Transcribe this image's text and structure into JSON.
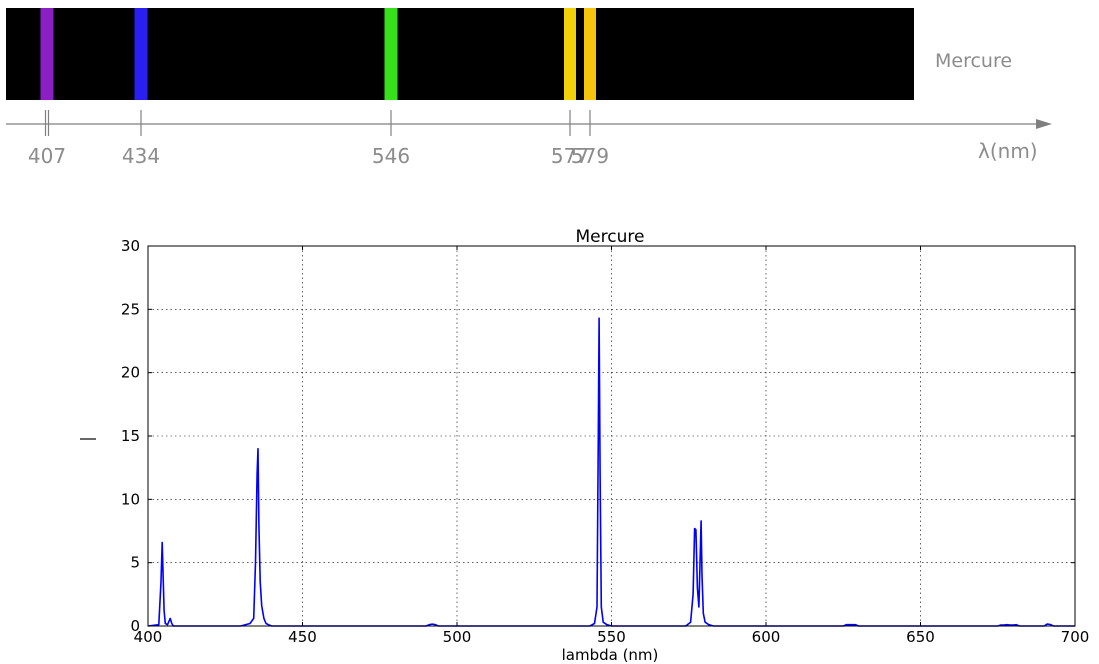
{
  "chart_data": [
    {
      "type": "bar",
      "label": "Mercure",
      "axis_label": "λ(nm)",
      "lines": [
        {
          "wavelength": 407,
          "color": "#8a1fc4"
        },
        {
          "wavelength": 434,
          "color": "#2a1ff2"
        },
        {
          "wavelength": 546,
          "color": "#36e11c"
        },
        {
          "wavelength": 577,
          "color": "#f1d20a"
        },
        {
          "wavelength": 579,
          "color": "#f7c40d"
        }
      ],
      "tick_labels": [
        "407",
        "434",
        "546",
        "577",
        "579"
      ]
    },
    {
      "type": "line",
      "title": "Mercure",
      "xlabel": "lambda (nm)",
      "ylabel": "",
      "xlim": [
        400,
        700
      ],
      "ylim": [
        0,
        30
      ],
      "xticks": [
        400,
        450,
        500,
        550,
        600,
        650,
        700
      ],
      "yticks": [
        0,
        5,
        10,
        15,
        20,
        25,
        30
      ],
      "grid": true,
      "series_color": "#0000ff",
      "series": [
        {
          "x": [
            400,
            403.5,
            404.2,
            404.6,
            404.9,
            405.2,
            405.6,
            406.3,
            407.2,
            407.7,
            408.2,
            409,
            430,
            433,
            434.2,
            434.8,
            435.3,
            435.6,
            435.9,
            436.3,
            436.8,
            437.5,
            438.2,
            439,
            440,
            490,
            491,
            492,
            493,
            494,
            543,
            544.5,
            545.3,
            545.7,
            546.0,
            546.3,
            546.7,
            547.3,
            548.5,
            550,
            574,
            575.6,
            576.4,
            576.9,
            577.3,
            577.8,
            578.3,
            578.7,
            579.0,
            579.3,
            579.7,
            580.3,
            581.5,
            583,
            625,
            626,
            627,
            628,
            629,
            630,
            675,
            676,
            677,
            678,
            679,
            680,
            681,
            682,
            690,
            691,
            692,
            693,
            700
          ],
          "y": [
            0,
            0.1,
            3.5,
            6.6,
            4.0,
            1.2,
            0.2,
            0.1,
            0.6,
            0.2,
            0,
            0,
            0,
            0.2,
            0.6,
            5.0,
            12.0,
            14.0,
            8.0,
            3.5,
            1.6,
            0.6,
            0.2,
            0.1,
            0,
            0,
            0.1,
            0.15,
            0.1,
            0,
            0,
            0.2,
            1.5,
            14.0,
            24.3,
            12.0,
            1.5,
            0.3,
            0.1,
            0,
            0,
            0.3,
            2.5,
            7.7,
            7.6,
            3.0,
            1.5,
            5.5,
            8.3,
            4.0,
            1.0,
            0.3,
            0.1,
            0,
            0,
            0.1,
            0.1,
            0.1,
            0.1,
            0,
            0,
            0.08,
            0.08,
            0.1,
            0.08,
            0.08,
            0.1,
            0,
            0,
            0.15,
            0.12,
            0,
            0
          ]
        }
      ]
    }
  ]
}
